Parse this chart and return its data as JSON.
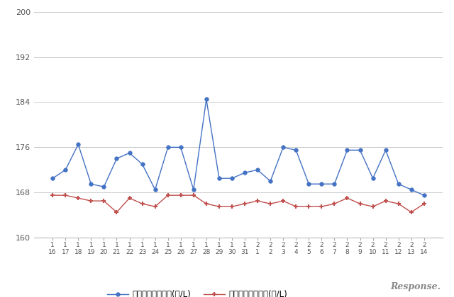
{
  "x_labels": [
    "1\n16",
    "1\n17",
    "1\n18",
    "1\n19",
    "1\n20",
    "1\n21",
    "1\n22",
    "1\n23",
    "1\n24",
    "1\n25",
    "1\n26",
    "1\n27",
    "1\n28",
    "1\n29",
    "1\n30",
    "1\n31",
    "2\n1",
    "2\n2",
    "2\n3",
    "2\n4",
    "2\n5",
    "2\n6",
    "2\n7",
    "2\n8",
    "2\n9",
    "2\n10",
    "2\n11",
    "2\n12",
    "2\n13",
    "2\n14"
  ],
  "blue_values": [
    170.5,
    172.0,
    176.5,
    169.5,
    169.0,
    174.0,
    175.0,
    173.0,
    168.5,
    176.0,
    176.0,
    168.5,
    184.5,
    170.5,
    170.5,
    171.5,
    172.0,
    170.0,
    176.0,
    175.5,
    169.5,
    169.5,
    169.5,
    175.5,
    175.5,
    170.5,
    175.5,
    169.5,
    168.5,
    167.5
  ],
  "red_values": [
    167.5,
    167.5,
    167.0,
    166.5,
    166.5,
    164.5,
    167.0,
    166.0,
    165.5,
    167.5,
    167.5,
    167.5,
    166.0,
    165.5,
    165.5,
    166.0,
    166.5,
    166.0,
    166.5,
    165.5,
    165.5,
    165.5,
    166.0,
    167.0,
    166.0,
    165.5,
    166.5,
    166.0,
    164.5,
    166.0
  ],
  "blue_color": "#4472C4",
  "red_color": "#C0504D",
  "ylim": [
    160,
    200
  ],
  "yticks": [
    160,
    168,
    176,
    184,
    192,
    200
  ],
  "legend_blue": "ハイオク看板価格(円/L)",
  "legend_red": "ハイオク実売価格(円/L)",
  "bg_color": "#ffffff",
  "grid_color": "#cccccc",
  "watermark": "Response.",
  "title": ""
}
